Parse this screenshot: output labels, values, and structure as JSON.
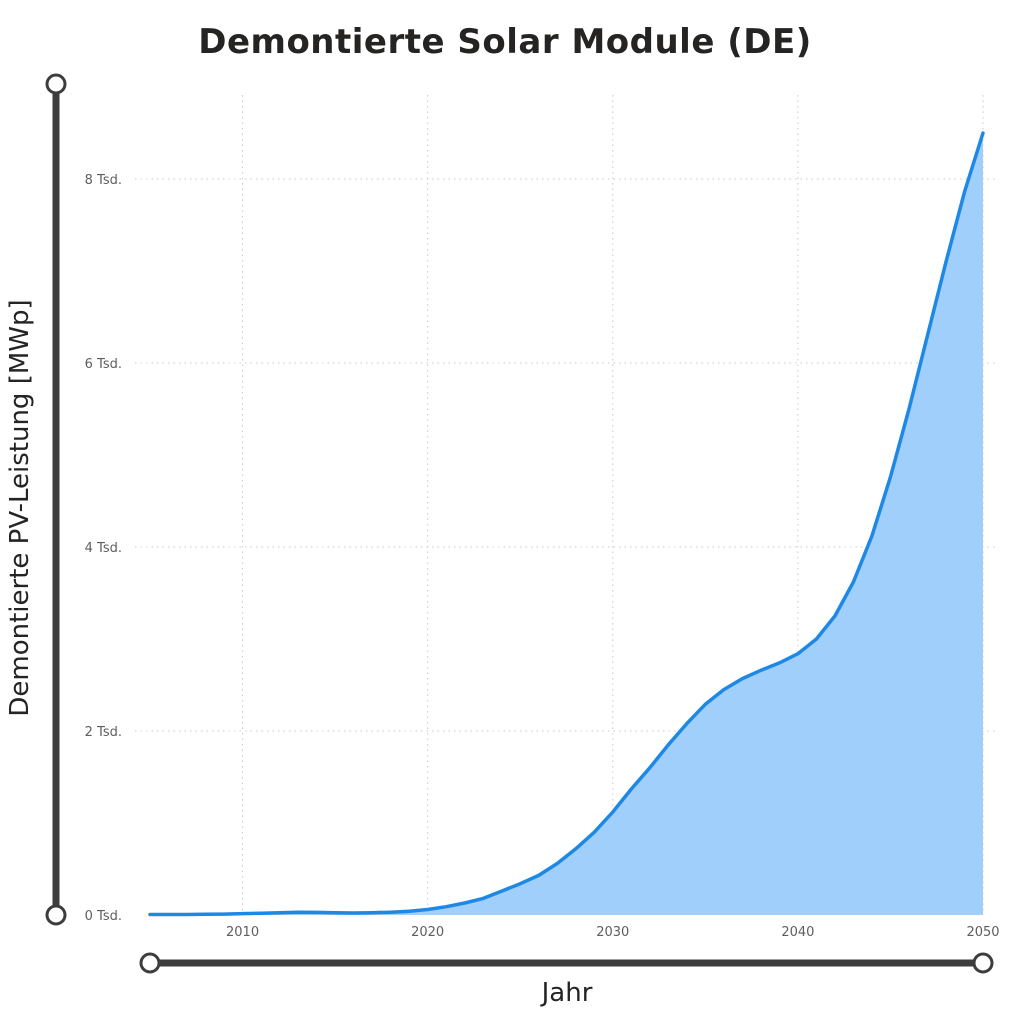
{
  "chart_data": {
    "type": "area",
    "title": "Demontierte Solar Module (DE)",
    "xlabel": "Jahr",
    "ylabel": "Demontierte PV-Leistung [MWp]",
    "xlim": [
      2005,
      2050
    ],
    "ylim": [
      0,
      9000
    ],
    "x_ticks": [
      2010,
      2020,
      2030,
      2040,
      2050
    ],
    "x_tick_labels": [
      "2010",
      "2020",
      "2030",
      "2040",
      "2050"
    ],
    "y_ticks": [
      0,
      2000,
      4000,
      6000,
      8000
    ],
    "y_tick_labels": [
      "0 Tsd.",
      "2 Tsd.",
      "4 Tsd.",
      "6 Tsd.",
      "8 Tsd."
    ],
    "grid": true,
    "colors": {
      "line": "#1e88e5",
      "fill": "#a0cffc",
      "axis_slider": "#3d3d3d",
      "grid": "#c8c8c8"
    },
    "series": [
      {
        "x": [
          2005,
          2006,
          2007,
          2008,
          2009,
          2010,
          2011,
          2012,
          2013,
          2014,
          2015,
          2016,
          2017,
          2018,
          2019,
          2020,
          2021,
          2022,
          2023,
          2024,
          2025,
          2026,
          2027,
          2028,
          2029,
          2030,
          2031,
          2032,
          2033,
          2034,
          2035,
          2036,
          2037,
          2038,
          2039,
          2040,
          2041,
          2042,
          2043,
          2044,
          2045,
          2046,
          2047,
          2048,
          2049,
          2050
        ],
        "values": [
          5,
          5,
          5,
          8,
          10,
          15,
          20,
          25,
          30,
          28,
          25,
          22,
          25,
          30,
          40,
          60,
          90,
          130,
          180,
          260,
          340,
          430,
          560,
          720,
          900,
          1120,
          1370,
          1600,
          1850,
          2080,
          2290,
          2450,
          2570,
          2660,
          2740,
          2840,
          3000,
          3250,
          3620,
          4120,
          4760,
          5500,
          6300,
          7100,
          7860,
          8500
        ]
      }
    ]
  }
}
